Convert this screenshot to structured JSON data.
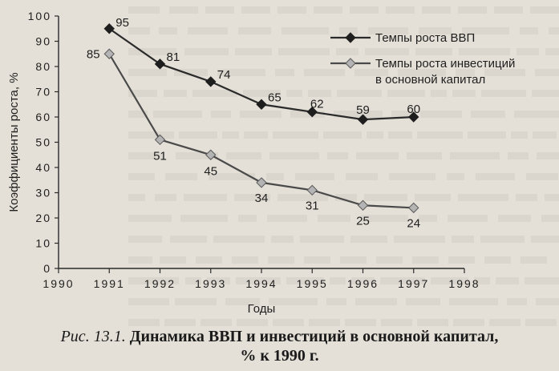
{
  "chart_data": {
    "type": "line",
    "x": [
      1991,
      1992,
      1993,
      1994,
      1995,
      1996,
      1997
    ],
    "series": [
      {
        "name": "Темпы роста ВВП",
        "marker": "diamond-filled",
        "color": "#2a2a2a",
        "values": [
          95,
          81,
          74,
          65,
          62,
          59,
          60
        ],
        "labels": [
          "95",
          "81",
          "74",
          "65",
          "62",
          "59",
          "60"
        ]
      },
      {
        "name": "Темпы роста инвестиций в основной капитал",
        "legend_lines": [
          "Темпы роста инвестиций",
          "в основной капитал"
        ],
        "marker": "diamond-gray",
        "color": "#5a5a5a",
        "values": [
          85,
          51,
          45,
          34,
          31,
          25,
          24
        ],
        "labels": [
          "85",
          "51",
          "45",
          "34",
          "31",
          "25",
          "24"
        ]
      }
    ],
    "xlabel": "Годы",
    "ylabel": "Коэффициенты роста, %",
    "xlim": [
      1990,
      1998
    ],
    "ylim": [
      0,
      100
    ],
    "xticks": [
      "1990",
      "1991",
      "1992",
      "1993",
      "1994",
      "1995",
      "1996",
      "1997",
      "1998"
    ],
    "yticks": [
      "0",
      "10",
      "20",
      "30",
      "40",
      "50",
      "60",
      "70",
      "80",
      "90",
      "100"
    ],
    "grid": false,
    "legend_position": "top-right"
  },
  "caption": {
    "prefix": "Рис. 13.1.",
    "title_line1": "Динамика ВВП и инвестиций в основной капитал,",
    "title_line2": "% к 1990 г."
  }
}
